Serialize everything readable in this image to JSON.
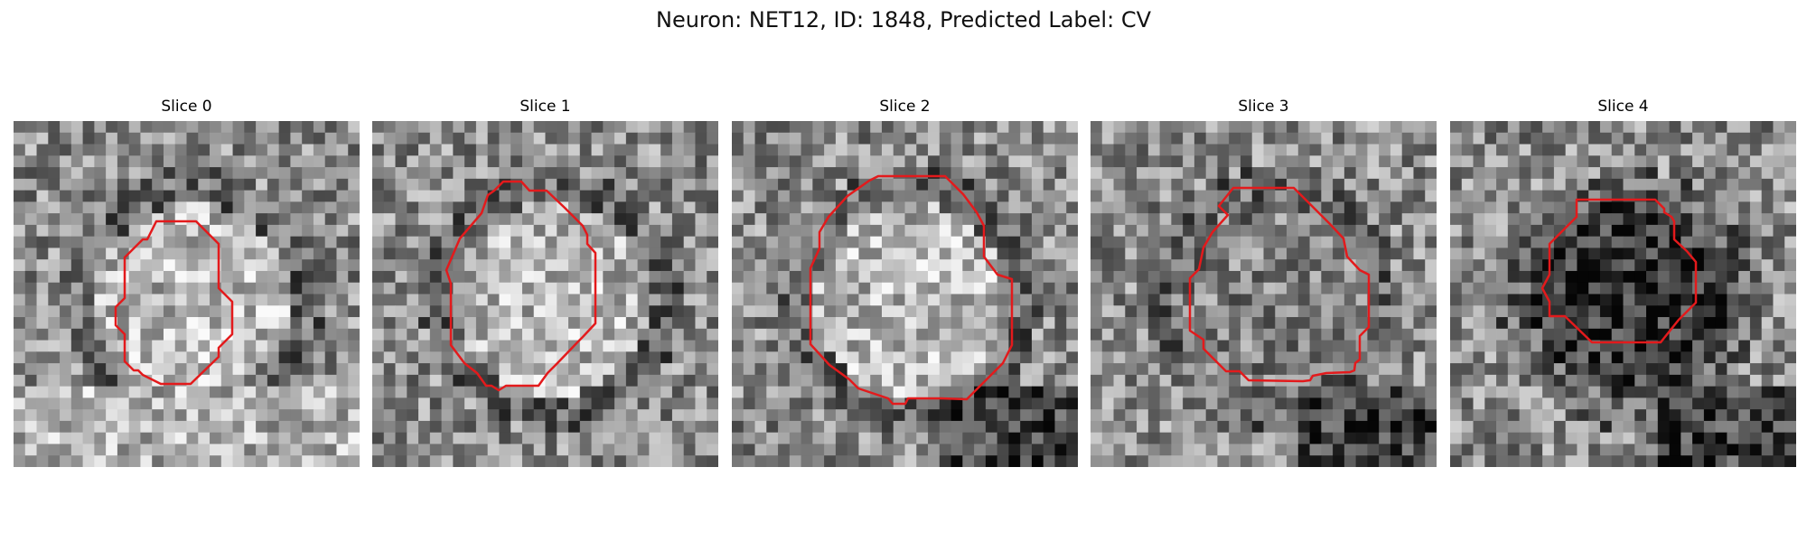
{
  "figure": {
    "title": "Neuron: NET12, ID: 1848, Predicted Label: CV"
  },
  "panels": [
    {
      "title": "Slice 0",
      "seed": 11,
      "center_shade": "light",
      "bottom_shade": "light"
    },
    {
      "title": "Slice 1",
      "seed": 23,
      "center_shade": "light",
      "bottom_shade": "mixed"
    },
    {
      "title": "Slice 2",
      "seed": 37,
      "center_shade": "light",
      "bottom_shade": "dark-right"
    },
    {
      "title": "Slice 3",
      "seed": 51,
      "center_shade": "mixed",
      "bottom_shade": "dark-right"
    },
    {
      "title": "Slice 4",
      "seed": 67,
      "center_shade": "dark",
      "bottom_shade": "dark-right"
    }
  ],
  "colors": {
    "outline": "#e31a1c",
    "background": "#ffffff"
  }
}
